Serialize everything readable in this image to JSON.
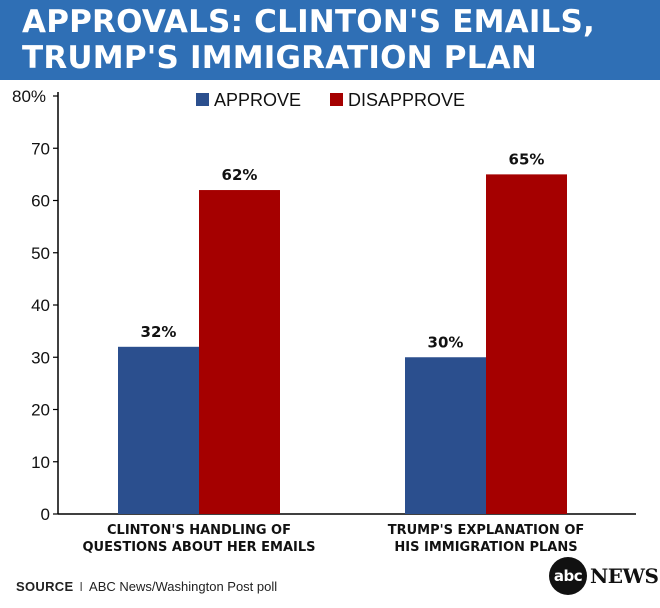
{
  "title_lines": [
    "APPROVALS: CLINTON'S EMAILS,",
    "TRUMP'S IMMIGRATION PLAN"
  ],
  "colors": {
    "header": "#2f6fb5",
    "approve": "#2b4f8e",
    "disapprove": "#a50000"
  },
  "chart_data": {
    "type": "bar",
    "title": "APPROVALS: CLINTON'S EMAILS, TRUMP'S IMMIGRATION PLAN",
    "categories": [
      [
        "CLINTON'S HANDLING OF",
        "QUESTIONS ABOUT HER EMAILS"
      ],
      [
        "TRUMP'S EXPLANATION OF",
        "HIS IMMIGRATION PLANS"
      ]
    ],
    "series": [
      {
        "name": "APPROVE",
        "values": [
          32,
          30
        ],
        "labels": [
          "32%",
          "30%"
        ]
      },
      {
        "name": "DISAPPROVE",
        "values": [
          62,
          65
        ],
        "labels": [
          "62%",
          "65%"
        ]
      }
    ],
    "ylim": [
      0,
      80
    ],
    "yticks": [
      0,
      10,
      20,
      30,
      40,
      50,
      60,
      70,
      80
    ],
    "ytick_labels": [
      "0",
      "10",
      "20",
      "30",
      "40",
      "50",
      "60",
      "70",
      "80%"
    ],
    "legend_position": "top-center",
    "grid": false
  },
  "footer": {
    "source_label": "SOURCE",
    "separator": "I",
    "source_text": "ABC News/Washington Post poll"
  },
  "logo": {
    "mark": "abc",
    "word": "NEWS"
  }
}
